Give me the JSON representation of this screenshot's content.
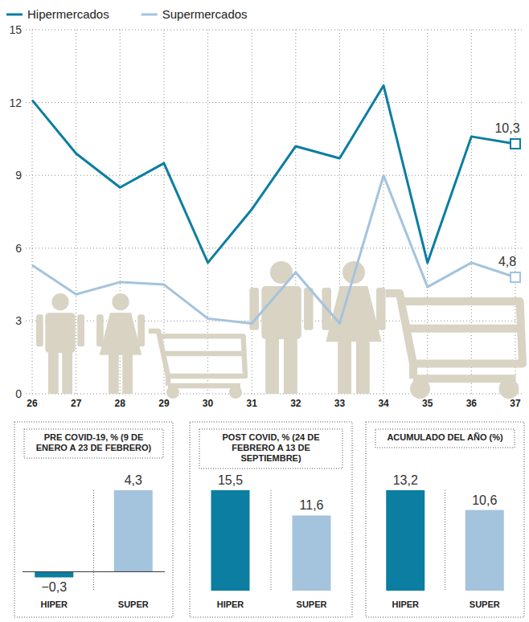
{
  "chart_data": [
    {
      "type": "line",
      "categories": [
        "26",
        "27",
        "28",
        "29",
        "30",
        "31",
        "32",
        "33",
        "34",
        "35",
        "36",
        "37"
      ],
      "series": [
        {
          "name": "Hipermercados",
          "color": "#0b7ea1",
          "marker": "square",
          "values": [
            12.1,
            9.9,
            8.5,
            9.5,
            5.4,
            7.6,
            10.2,
            9.7,
            12.7,
            5.4,
            10.6,
            10.3
          ],
          "value_labels": [
            null,
            null,
            null,
            null,
            null,
            null,
            null,
            null,
            null,
            null,
            null,
            "10,3"
          ]
        },
        {
          "name": "Supermercados",
          "color": "#a4c3dd",
          "marker": "square",
          "values": [
            5.3,
            4.1,
            4.6,
            4.5,
            3.1,
            2.9,
            5.0,
            2.9,
            9.0,
            4.4,
            5.4,
            4.8
          ],
          "value_labels": [
            null,
            null,
            null,
            null,
            null,
            null,
            null,
            null,
            null,
            null,
            null,
            "4,8"
          ]
        }
      ],
      "ylim": [
        0,
        15
      ],
      "yticks": [
        0,
        3,
        6,
        9,
        12,
        15
      ],
      "grid": true,
      "legend": "top",
      "data_labels": true
    },
    {
      "type": "bar",
      "title": "PRE COVID-19, % (9 DE ENERO A 23 DE FEBRERO)",
      "categories": [
        "HIPER",
        "SUPER"
      ],
      "values": [
        -0.3,
        4.3
      ],
      "value_labels": [
        "−0,3",
        "4,3"
      ],
      "colors": [
        "#0b7ea1",
        "#a4c3dd"
      ],
      "ylim": [
        -1,
        4.3
      ],
      "data_labels": true,
      "tick_labels": "x"
    },
    {
      "type": "bar",
      "title": "POST COVID, % (24 DE FEBRERO A 13 DE SEPTIEMBRE)",
      "categories": [
        "HIPER",
        "SUPER"
      ],
      "values": [
        15.5,
        11.6
      ],
      "value_labels": [
        "15,5",
        "11,6"
      ],
      "colors": [
        "#0b7ea1",
        "#a4c3dd"
      ],
      "ylim": [
        0,
        15.5
      ],
      "data_labels": true,
      "tick_labels": "x"
    },
    {
      "type": "bar",
      "title": "ACUMULADO DEL AÑO (%)",
      "categories": [
        "HIPER",
        "SUPER"
      ],
      "values": [
        13.2,
        10.6
      ],
      "value_labels": [
        "13,2",
        "10,6"
      ],
      "colors": [
        "#0b7ea1",
        "#a4c3dd"
      ],
      "ylim": [
        0,
        13.2
      ],
      "data_labels": true,
      "tick_labels": "x"
    }
  ]
}
